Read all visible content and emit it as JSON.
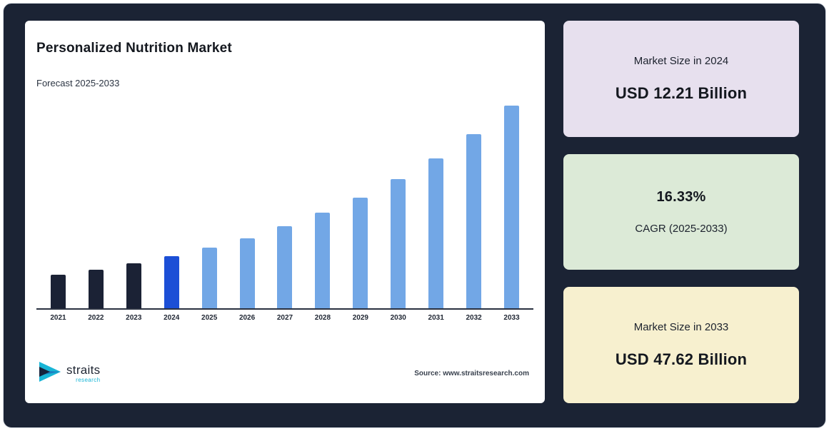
{
  "frame": {
    "background": "#1b2334"
  },
  "chart_card": {
    "title": "Personalized Nutrition Market",
    "subtitle": "Forecast 2025-2033",
    "source": "Source: www.straitsresearch.com",
    "logo": {
      "brand": "straits",
      "sub": "research"
    }
  },
  "chart_data": {
    "type": "bar",
    "title": "Personalized Nutrition Market",
    "subtitle": "Forecast 2025-2033",
    "categories": [
      "2021",
      "2022",
      "2023",
      "2024",
      "2025",
      "2026",
      "2027",
      "2028",
      "2029",
      "2030",
      "2031",
      "2032",
      "2033"
    ],
    "values": [
      7.8,
      9.0,
      10.5,
      12.21,
      14.2,
      16.5,
      19.2,
      22.4,
      26.0,
      30.3,
      35.2,
      40.9,
      47.62
    ],
    "unit": "USD Billion",
    "bar_roles": [
      "historical",
      "historical",
      "historical",
      "base_year",
      "forecast",
      "forecast",
      "forecast",
      "forecast",
      "forecast",
      "forecast",
      "forecast",
      "forecast",
      "forecast"
    ],
    "colors": {
      "historical": "#1b2235",
      "base_year": "#1c4fd6",
      "forecast": "#72a7e6"
    },
    "ylim": [
      0,
      50
    ],
    "gridlines": false,
    "value_labels": false,
    "legend": "none"
  },
  "stat_cards": [
    {
      "id": "market-size-2024",
      "bg": "#e7e0ee",
      "label": "Market Size in 2024",
      "value": "USD 12.21 Billion",
      "value_position": "bottom"
    },
    {
      "id": "cagr",
      "bg": "#dcead7",
      "label": "CAGR (2025-2033)",
      "value": "16.33%",
      "value_position": "top"
    },
    {
      "id": "market-size-2033",
      "bg": "#f7f0cf",
      "label": "Market Size in 2033",
      "value": "USD 47.62 Billion",
      "value_position": "bottom"
    }
  ]
}
